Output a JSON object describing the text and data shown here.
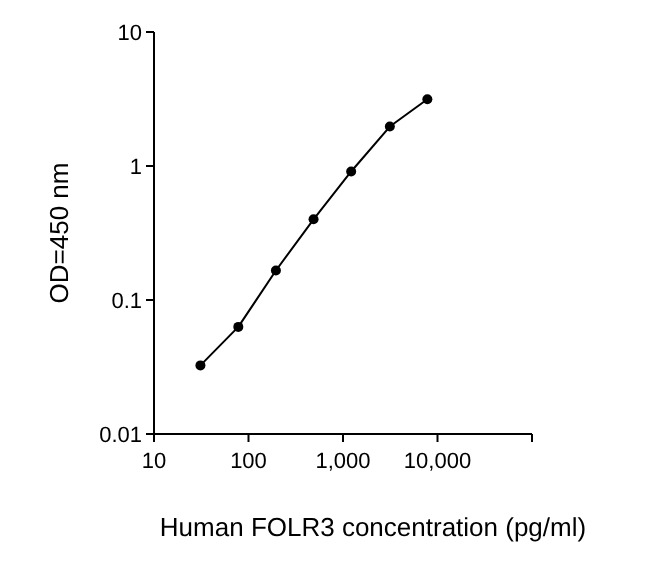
{
  "chart_data": {
    "type": "line",
    "xlabel": "Human FOLR3 concentration (pg/ml)",
    "ylabel": "OD=450 nm",
    "x": [
      31,
      78,
      195,
      488,
      1220,
      3130,
      7810
    ],
    "series": [
      {
        "color": "#000000",
        "values": [
          0.0325,
          0.063,
          0.166,
          0.4,
          0.91,
          1.97,
          3.15
        ]
      }
    ],
    "log": "xy",
    "marker": "circle",
    "line_style": "solid",
    "grid": false,
    "xlim": [
      10,
      100000
    ],
    "xticks": [
      10,
      100,
      {
        "value": 1000,
        "label": "1,000"
      },
      {
        "value": 10000,
        "label": "10,000"
      },
      {
        "value": 100000,
        "label": null
      }
    ],
    "ylim": [
      0.01,
      10
    ],
    "yticks": [
      0.01,
      0.1,
      1,
      10
    ]
  }
}
